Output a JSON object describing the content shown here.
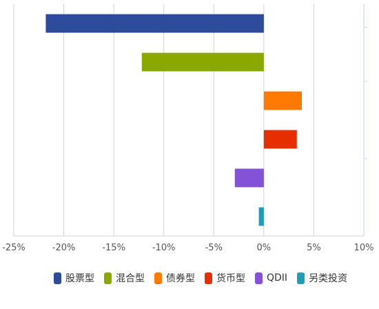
{
  "chart_data": {
    "type": "bar",
    "orientation": "horizontal",
    "categories": [
      "股票型",
      "混合型",
      "债券型",
      "货币型",
      "QDII",
      "另类投资"
    ],
    "values": [
      -21.8,
      -12.2,
      3.8,
      3.3,
      -2.9,
      -0.5
    ],
    "colors": [
      "#2e4a9a",
      "#8aa800",
      "#ff7a00",
      "#e62e00",
      "#8352d6",
      "#1f9cb6"
    ],
    "xlim": [
      -25,
      10
    ],
    "xticks": [
      -25,
      -20,
      -15,
      -10,
      -5,
      0,
      5,
      10
    ],
    "xtick_labels": [
      "-25%",
      "-20%",
      "-15%",
      "-10%",
      "-5%",
      "0%",
      "5%",
      "10%"
    ],
    "grid": true,
    "legend_position": "bottom",
    "title": "",
    "xlabel": "",
    "ylabel": ""
  }
}
